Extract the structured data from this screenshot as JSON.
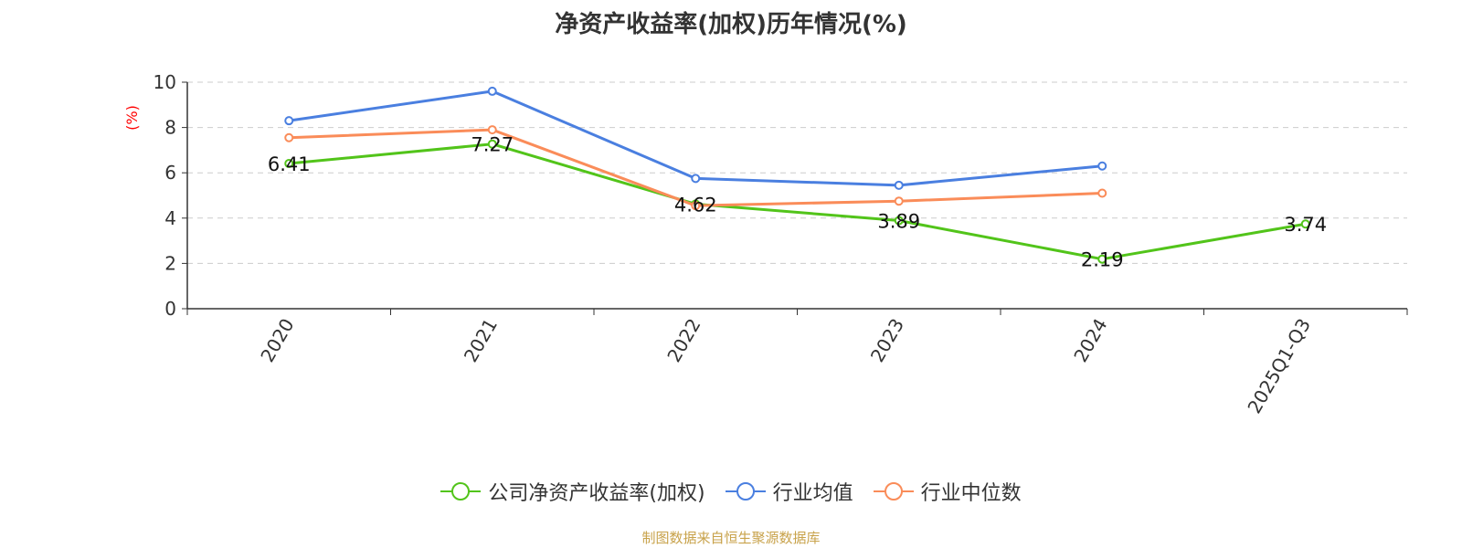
{
  "chart_data": {
    "type": "line",
    "title": "净资产收益率(加权)历年情况(%)",
    "ylabel": "(%)",
    "xlabel": "",
    "categories": [
      "2020",
      "2021",
      "2022",
      "2023",
      "2024",
      "2025Q1-Q3"
    ],
    "ylim": [
      0,
      10
    ],
    "yticks": [
      0,
      2,
      4,
      6,
      8,
      10
    ],
    "grid": true,
    "legend_position": "bottom",
    "series": [
      {
        "name": "公司净资产收益率(加权)",
        "color": "#52c41a",
        "values": [
          6.41,
          7.27,
          4.62,
          3.89,
          2.19,
          3.74
        ],
        "labels": [
          "6.41",
          "7.27",
          "4.62",
          "3.89",
          "2.19",
          "3.74"
        ]
      },
      {
        "name": "行业均值",
        "color": "#4a7fe0",
        "values": [
          8.3,
          9.6,
          5.75,
          5.45,
          6.3,
          null
        ]
      },
      {
        "name": "行业中位数",
        "color": "#fa8c59",
        "values": [
          7.55,
          7.9,
          4.55,
          4.75,
          5.1,
          null
        ]
      }
    ]
  },
  "source": "制图数据来自恒生聚源数据库"
}
